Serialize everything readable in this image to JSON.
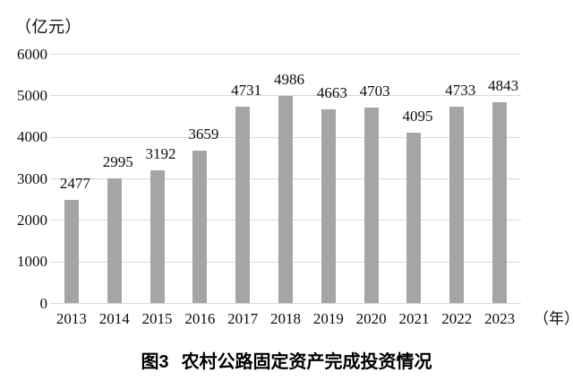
{
  "figure": {
    "y_unit_label": "（亿元）",
    "x_unit_label": "（年）"
  },
  "caption": {
    "figure_number": "图3",
    "title": "农村公路固定资产完成投资情况"
  },
  "chart_data": {
    "type": "bar",
    "title": "图3 农村公路固定资产完成投资情况",
    "ylabel": "（亿元）",
    "xlabel": "（年）",
    "categories": [
      "2013",
      "2014",
      "2015",
      "2016",
      "2017",
      "2018",
      "2019",
      "2020",
      "2021",
      "2022",
      "2023"
    ],
    "values": [
      2477,
      2995,
      3192,
      3659,
      4731,
      4986,
      4663,
      4703,
      4095,
      4733,
      4843
    ],
    "ylim": [
      0,
      6000
    ],
    "yticks": [
      0,
      1000,
      2000,
      3000,
      4000,
      5000,
      6000
    ],
    "grid": "horizontal",
    "legend": "none",
    "data_labels": "above-bars",
    "bar_color": "#a5a5a5",
    "gridline_color": "#d9d9d9",
    "text_color": "#0c0c0c",
    "background_color": "#ffffff"
  }
}
